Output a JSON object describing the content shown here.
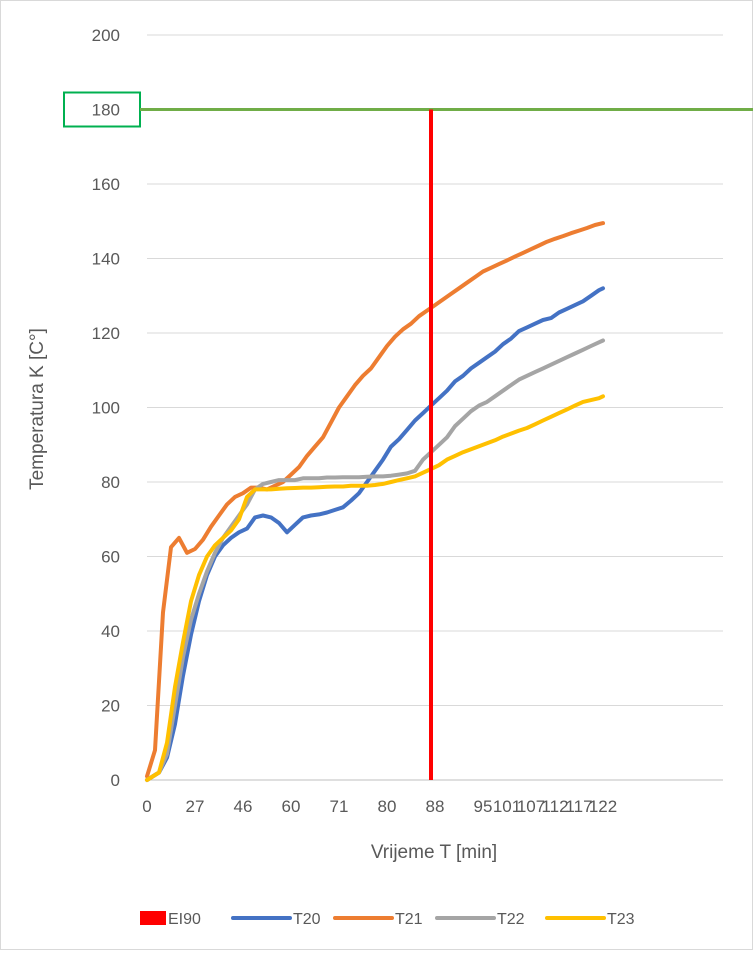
{
  "chart_data": {
    "type": "line",
    "title": "",
    "xlabel": "Vrijeme T [min]",
    "ylabel": "Temperatura K [C°]",
    "ylim": [
      0,
      200
    ],
    "yticks": [
      0,
      20,
      40,
      60,
      80,
      100,
      120,
      140,
      160,
      180,
      200
    ],
    "xlim": [
      0,
      144
    ],
    "xtick_labels": [
      {
        "x": 0,
        "label": "0"
      },
      {
        "x": 12,
        "label": "27"
      },
      {
        "x": 24,
        "label": "46"
      },
      {
        "x": 36,
        "label": "60"
      },
      {
        "x": 48,
        "label": "71"
      },
      {
        "x": 60,
        "label": "80"
      },
      {
        "x": 72,
        "label": "88"
      },
      {
        "x": 84,
        "label": "95"
      },
      {
        "x": 90,
        "label": "101"
      },
      {
        "x": 96,
        "label": "107"
      },
      {
        "x": 102,
        "label": "112"
      },
      {
        "x": 108,
        "label": "117"
      },
      {
        "x": 114,
        "label": "122"
      }
    ],
    "grid": true,
    "legend_position": "bottom",
    "highlight_tick": {
      "value": 180,
      "label": "180",
      "color": "#00b050"
    },
    "limit_line": {
      "value": 180,
      "color": "#70ad47"
    },
    "series": [
      {
        "name": "EI90",
        "kind": "vertical",
        "color": "#ff0000",
        "x": 71
      },
      {
        "name": "T20",
        "kind": "line",
        "color": "#4472c4",
        "points": [
          [
            0,
            0
          ],
          [
            3,
            2
          ],
          [
            5,
            6
          ],
          [
            7,
            15
          ],
          [
            9,
            28
          ],
          [
            11,
            39
          ],
          [
            13,
            48
          ],
          [
            15,
            55
          ],
          [
            17,
            60
          ],
          [
            19,
            63
          ],
          [
            21,
            65
          ],
          [
            23,
            66.5
          ],
          [
            25,
            67.5
          ],
          [
            27,
            70.5
          ],
          [
            29,
            71
          ],
          [
            31,
            70.5
          ],
          [
            33,
            69
          ],
          [
            35,
            66.5
          ],
          [
            37,
            68.5
          ],
          [
            39,
            70.5
          ],
          [
            41,
            71
          ],
          [
            43,
            71.3
          ],
          [
            45,
            71.8
          ],
          [
            47,
            72.5
          ],
          [
            49,
            73.2
          ],
          [
            51,
            75
          ],
          [
            53,
            77
          ],
          [
            55,
            80
          ],
          [
            57,
            83
          ],
          [
            59,
            86
          ],
          [
            61,
            89.5
          ],
          [
            63,
            91.5
          ],
          [
            65,
            94
          ],
          [
            67,
            96.5
          ],
          [
            69,
            98.5
          ],
          [
            71,
            100.5
          ],
          [
            73,
            102.5
          ],
          [
            75,
            104.5
          ],
          [
            77,
            107
          ],
          [
            79,
            108.5
          ],
          [
            81,
            110.5
          ],
          [
            83,
            112
          ],
          [
            85,
            113.5
          ],
          [
            87,
            115
          ],
          [
            89,
            117
          ],
          [
            91,
            118.5
          ],
          [
            93,
            120.5
          ],
          [
            95,
            121.5
          ],
          [
            97,
            122.5
          ],
          [
            99,
            123.5
          ],
          [
            101,
            124
          ],
          [
            103,
            125.5
          ],
          [
            105,
            126.5
          ],
          [
            107,
            127.5
          ],
          [
            109,
            128.5
          ],
          [
            111,
            130
          ],
          [
            113,
            131.5
          ],
          [
            114,
            132
          ]
        ]
      },
      {
        "name": "T21",
        "kind": "line",
        "color": "#ed7d31",
        "points": [
          [
            0,
            1
          ],
          [
            2,
            8
          ],
          [
            4,
            45
          ],
          [
            6,
            62.5
          ],
          [
            8,
            65
          ],
          [
            10,
            61
          ],
          [
            12,
            62
          ],
          [
            14,
            64.5
          ],
          [
            16,
            68
          ],
          [
            18,
            71
          ],
          [
            20,
            74
          ],
          [
            22,
            76
          ],
          [
            24,
            77
          ],
          [
            26,
            78.5
          ],
          [
            28,
            78.5
          ],
          [
            30,
            78
          ],
          [
            32,
            79
          ],
          [
            34,
            80
          ],
          [
            36,
            82
          ],
          [
            38,
            84
          ],
          [
            40,
            87
          ],
          [
            42,
            89.5
          ],
          [
            44,
            92
          ],
          [
            46,
            96
          ],
          [
            48,
            100
          ],
          [
            50,
            103
          ],
          [
            52,
            106
          ],
          [
            54,
            108.5
          ],
          [
            56,
            110.5
          ],
          [
            58,
            113.5
          ],
          [
            60,
            116.5
          ],
          [
            62,
            119
          ],
          [
            64,
            121
          ],
          [
            66,
            122.5
          ],
          [
            68,
            124.5
          ],
          [
            70,
            126
          ],
          [
            72,
            127.5
          ],
          [
            74,
            129
          ],
          [
            76,
            130.5
          ],
          [
            78,
            132
          ],
          [
            80,
            133.5
          ],
          [
            82,
            135
          ],
          [
            84,
            136.5
          ],
          [
            86,
            137.5
          ],
          [
            88,
            138.5
          ],
          [
            90,
            139.5
          ],
          [
            92,
            140.5
          ],
          [
            94,
            141.5
          ],
          [
            96,
            142.5
          ],
          [
            98,
            143.5
          ],
          [
            100,
            144.5
          ],
          [
            102,
            145.3
          ],
          [
            104,
            146
          ],
          [
            106,
            146.8
          ],
          [
            108,
            147.5
          ],
          [
            110,
            148.2
          ],
          [
            112,
            149
          ],
          [
            114,
            149.5
          ]
        ]
      },
      {
        "name": "T22",
        "kind": "line",
        "color": "#a5a5a5",
        "points": [
          [
            0,
            0
          ],
          [
            3,
            2
          ],
          [
            5,
            7
          ],
          [
            7,
            20
          ],
          [
            9,
            33
          ],
          [
            11,
            43
          ],
          [
            13,
            50
          ],
          [
            15,
            56
          ],
          [
            17,
            61
          ],
          [
            19,
            65
          ],
          [
            21,
            68
          ],
          [
            23,
            71
          ],
          [
            25,
            74
          ],
          [
            27,
            78
          ],
          [
            29,
            79.5
          ],
          [
            31,
            80
          ],
          [
            33,
            80.5
          ],
          [
            35,
            80.5
          ],
          [
            37,
            80.5
          ],
          [
            39,
            81
          ],
          [
            41,
            81
          ],
          [
            43,
            81
          ],
          [
            45,
            81.2
          ],
          [
            47,
            81.2
          ],
          [
            49,
            81.3
          ],
          [
            51,
            81.3
          ],
          [
            53,
            81.3
          ],
          [
            55,
            81.4
          ],
          [
            57,
            81.5
          ],
          [
            59,
            81.5
          ],
          [
            61,
            81.7
          ],
          [
            63,
            82
          ],
          [
            65,
            82.3
          ],
          [
            67,
            83
          ],
          [
            69,
            86
          ],
          [
            71,
            88
          ],
          [
            73,
            90
          ],
          [
            75,
            92
          ],
          [
            77,
            95
          ],
          [
            79,
            97
          ],
          [
            81,
            99
          ],
          [
            83,
            100.5
          ],
          [
            85,
            101.5
          ],
          [
            87,
            103
          ],
          [
            89,
            104.5
          ],
          [
            91,
            106
          ],
          [
            93,
            107.5
          ],
          [
            95,
            108.5
          ],
          [
            97,
            109.5
          ],
          [
            99,
            110.5
          ],
          [
            101,
            111.5
          ],
          [
            103,
            112.5
          ],
          [
            105,
            113.5
          ],
          [
            107,
            114.5
          ],
          [
            109,
            115.5
          ],
          [
            111,
            116.5
          ],
          [
            113,
            117.5
          ],
          [
            114,
            118
          ]
        ]
      },
      {
        "name": "T23",
        "kind": "line",
        "color": "#ffc000",
        "points": [
          [
            0,
            0
          ],
          [
            3,
            2
          ],
          [
            5,
            10
          ],
          [
            7,
            25
          ],
          [
            9,
            37
          ],
          [
            11,
            48
          ],
          [
            13,
            55
          ],
          [
            15,
            60
          ],
          [
            17,
            63
          ],
          [
            19,
            65
          ],
          [
            21,
            67
          ],
          [
            23,
            70
          ],
          [
            25,
            76
          ],
          [
            27,
            78
          ],
          [
            29,
            78
          ],
          [
            31,
            78
          ],
          [
            33,
            78.2
          ],
          [
            35,
            78.3
          ],
          [
            37,
            78.4
          ],
          [
            39,
            78.5
          ],
          [
            41,
            78.5
          ],
          [
            43,
            78.6
          ],
          [
            45,
            78.7
          ],
          [
            47,
            78.8
          ],
          [
            49,
            78.8
          ],
          [
            51,
            79
          ],
          [
            53,
            79
          ],
          [
            55,
            79
          ],
          [
            57,
            79.2
          ],
          [
            59,
            79.5
          ],
          [
            61,
            80
          ],
          [
            63,
            80.5
          ],
          [
            65,
            81
          ],
          [
            67,
            81.5
          ],
          [
            69,
            82.5
          ],
          [
            71,
            83.5
          ],
          [
            73,
            84.5
          ],
          [
            75,
            86
          ],
          [
            77,
            87
          ],
          [
            79,
            88
          ],
          [
            81,
            88.8
          ],
          [
            83,
            89.6
          ],
          [
            85,
            90.4
          ],
          [
            87,
            91.2
          ],
          [
            89,
            92.2
          ],
          [
            91,
            93
          ],
          [
            93,
            93.8
          ],
          [
            95,
            94.5
          ],
          [
            97,
            95.5
          ],
          [
            99,
            96.5
          ],
          [
            101,
            97.5
          ],
          [
            103,
            98.5
          ],
          [
            105,
            99.5
          ],
          [
            107,
            100.5
          ],
          [
            109,
            101.5
          ],
          [
            111,
            102
          ],
          [
            113,
            102.5
          ],
          [
            114,
            103
          ]
        ]
      }
    ]
  }
}
